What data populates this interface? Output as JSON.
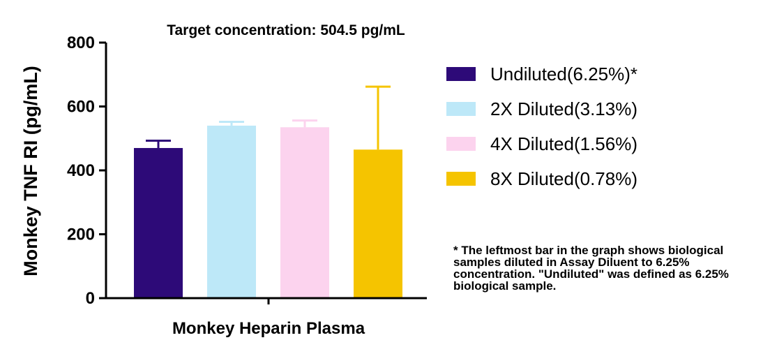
{
  "chart_data": {
    "type": "bar",
    "title": "Target concentration: 504.5 pg/mL",
    "xlabel": "Monkey Heparin Plasma",
    "ylabel": "Monkey TNF RI (pg/mL)",
    "ylim": [
      0,
      800
    ],
    "yticks": [
      "0",
      "200",
      "400",
      "600",
      "800"
    ],
    "grid": false,
    "legend_position": "right",
    "series": [
      {
        "name": "Undiluted(6.25%)*",
        "value": 470,
        "error": 23,
        "color": "#2d0a78"
      },
      {
        "name": "2X Diluted(3.13%)",
        "value": 540,
        "error": 12,
        "color": "#bde8f8"
      },
      {
        "name": "4X Diluted(1.56%)",
        "value": 535,
        "error": 21,
        "color": "#fcd3ee"
      },
      {
        "name": "8X Diluted(0.78%)",
        "value": 465,
        "error": 197,
        "color": "#f5c400"
      }
    ]
  },
  "footnote": "* The leftmost bar in the graph shows biological samples diluted in Assay Diluent to 6.25% concentration. \"Undiluted\" was defined as 6.25% biological sample."
}
